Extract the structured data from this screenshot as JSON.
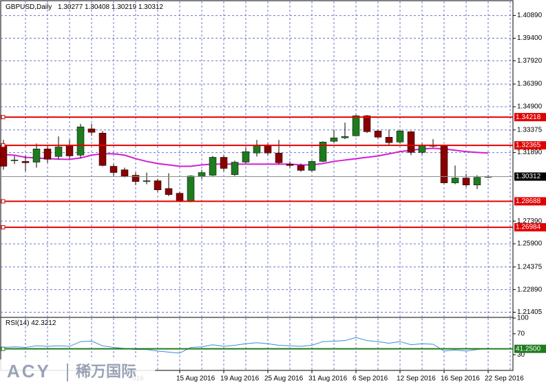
{
  "chart_data": {
    "type": "candlestick",
    "title": "GBPUSD,Daily",
    "categories": [
      null,
      null,
      null,
      null,
      null,
      null,
      null,
      null,
      null,
      null,
      null,
      null,
      "016",
      null,
      null,
      null,
      "15 Aug 2016",
      null,
      null,
      null,
      "19 Aug 2016",
      null,
      null,
      null,
      "25 Aug 2016",
      null,
      null,
      null,
      "31 Aug 2016",
      null,
      null,
      null,
      "6 Sep 2016",
      null,
      null,
      null,
      "12 Sep 2016",
      null,
      null,
      null,
      "16 Sep 2016",
      null,
      null,
      null,
      "22 Sep 2016"
    ],
    "open": [
      1.3235,
      1.3136,
      1.3131,
      1.3126,
      1.3213,
      1.3163,
      1.3235,
      1.3172,
      1.3345,
      1.3317,
      1.3099,
      1.3076,
      1.304,
      1.2999,
      1.3004,
      1.2953,
      1.2922,
      1.2872,
      1.3031,
      1.304,
      1.3158,
      1.3044,
      1.3126,
      1.3186,
      1.3235,
      1.3186,
      1.3113,
      1.3104,
      1.3072,
      1.3131,
      1.3263,
      1.3286,
      1.3299,
      1.3431,
      1.3331,
      1.329,
      1.3258,
      1.3326,
      1.319,
      1.3235,
      1.3235,
      1.299,
      1.3022,
      1.2976,
      1.30277
    ],
    "high": [
      1.3272,
      1.3167,
      1.3167,
      1.3249,
      1.3231,
      1.3295,
      1.3272,
      1.3377,
      1.3377,
      1.3331,
      1.3113,
      1.309,
      1.3058,
      1.3058,
      1.3017,
      1.3053,
      1.2931,
      1.304,
      1.3076,
      1.3167,
      1.3172,
      1.3136,
      1.3222,
      1.3272,
      1.3249,
      1.3272,
      1.3131,
      1.3117,
      1.3136,
      1.3263,
      1.334,
      1.3386,
      1.3436,
      1.3436,
      1.334,
      1.334,
      1.334,
      1.3331,
      1.3249,
      1.3277,
      1.324,
      1.3104,
      1.3049,
      1.304,
      1.30408
    ],
    "low": [
      1.3076,
      1.3113,
      1.3067,
      1.309,
      1.3122,
      1.3145,
      1.3149,
      1.3154,
      1.3299,
      1.3099,
      1.3035,
      1.3026,
      1.2976,
      1.2981,
      1.2931,
      1.2903,
      1.2863,
      1.2863,
      1.3017,
      1.3035,
      1.3067,
      1.3035,
      1.3117,
      1.3163,
      1.3172,
      1.3113,
      1.309,
      1.3063,
      1.3063,
      1.3126,
      1.3254,
      1.3277,
      1.3295,
      1.3317,
      1.3281,
      1.324,
      1.3249,
      1.3172,
      1.3177,
      1.3222,
      1.2985,
      1.2981,
      1.2963,
      1.2949,
      1.30219
    ],
    "close": [
      1.3099,
      1.314,
      1.3122,
      1.3213,
      1.3145,
      1.3226,
      1.3167,
      1.3358,
      1.3322,
      1.3104,
      1.3058,
      1.3035,
      1.2999,
      1.3004,
      1.2944,
      1.2913,
      1.2872,
      1.3035,
      1.3058,
      1.3158,
      1.3085,
      1.3126,
      1.3195,
      1.3235,
      1.3186,
      1.3122,
      1.3104,
      1.3072,
      1.3131,
      1.3258,
      1.3286,
      1.3295,
      1.3431,
      1.3326,
      1.329,
      1.3254,
      1.3331,
      1.319,
      1.3235,
      1.3231,
      1.299,
      1.3022,
      1.2976,
      1.3026,
      1.30312
    ],
    "up_color": "#1e7b1e",
    "down_color": "#8b0000",
    "ylim": [
      1.2111,
      1.4182
    ],
    "yticks": [
      {
        "value": 1.4089,
        "label": "1.40890"
      },
      {
        "value": 1.394,
        "label": "1.39400"
      },
      {
        "value": 1.3792,
        "label": "1.37920"
      },
      {
        "value": 1.3639,
        "label": "1.36390"
      },
      {
        "value": 1.349,
        "label": "1.34900"
      },
      1.33375,
      {
        "value": 1.3189,
        "label": "1.31890"
      },
      {
        "value": 1.2739,
        "label": "1.27390"
      },
      {
        "value": 1.259,
        "label": "1.25900"
      },
      1.24375,
      {
        "value": 1.2289,
        "label": "1.22890"
      },
      1.21405
    ],
    "grid": true,
    "levels": [
      1.34218,
      1.32365,
      1.28688,
      1.26984
    ],
    "level_color": "#e00000",
    "ma": {
      "color": "#d21fd2",
      "values": [
        1.3176,
        1.3172,
        1.3158,
        1.3154,
        1.3149,
        1.3146,
        1.3144,
        1.3154,
        1.3172,
        1.3181,
        1.3181,
        1.3172,
        1.3149,
        1.3131,
        1.3117,
        1.3108,
        1.3099,
        1.3099,
        1.3108,
        1.3113,
        1.3113,
        1.3113,
        1.3113,
        1.3113,
        1.3113,
        1.3113,
        1.3113,
        1.3108,
        1.3108,
        1.3117,
        1.3131,
        1.314,
        1.3149,
        1.3158,
        1.3167,
        1.3181,
        1.3195,
        1.3204,
        1.3213,
        1.3217,
        1.3213,
        1.3204,
        1.3195,
        1.319,
        1.3186
      ]
    },
    "rsi": {
      "name": "RSI(14)",
      "color": "#3c8ad8",
      "ylim": [
        0,
        100
      ],
      "yticks": [
        100,
        70,
        30
      ],
      "level": {
        "value": 41.25,
        "label": "41.2500"
      },
      "level_color": "#1e7b1e",
      "values": [
        44,
        45,
        44,
        47,
        46,
        47,
        46,
        55,
        56,
        47,
        44,
        42,
        40,
        40,
        37,
        35,
        33,
        44,
        45,
        49,
        46,
        48,
        51,
        53,
        51,
        48,
        47,
        46,
        48,
        55,
        56,
        57,
        63,
        57,
        55,
        52,
        55,
        49,
        51,
        50,
        37,
        39,
        37,
        40,
        42.3212
      ]
    }
  },
  "watermark": {
    "brand": "ACY",
    "name": "稀万国际"
  }
}
